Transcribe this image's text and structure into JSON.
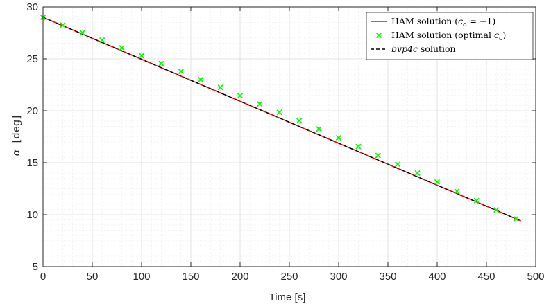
{
  "chart_data": {
    "type": "line",
    "title": "",
    "xlabel": "Time [s]",
    "ylabel_symbol": "α",
    "ylabel_unit": "[deg]",
    "xlim": [
      0,
      500
    ],
    "ylim": [
      5,
      30
    ],
    "xticks": [
      0,
      50,
      100,
      150,
      200,
      250,
      300,
      350,
      400,
      450,
      500
    ],
    "yticks": [
      5,
      10,
      15,
      20,
      25,
      30
    ],
    "grid": true,
    "minor_grid": true,
    "legend_position": "top-right",
    "colors": {
      "ham": "#ff0000",
      "optimal": "#00ff00",
      "bvp4c": "#000000",
      "grid": "#dcdcdc",
      "axis": "#262626"
    },
    "series": [
      {
        "name": "HAM solution (c_o = −1)",
        "legend_parts": [
          "HAM solution (",
          "c",
          "o",
          " = −1)"
        ],
        "style": "solid",
        "x_start": 0,
        "x_end": 485,
        "y_start": 29.0,
        "y_end": 9.4
      },
      {
        "name": "HAM solution (optimal c_o)",
        "legend_parts": [
          "HAM solution (optimal ",
          "c",
          "o",
          ")"
        ],
        "style": "marker-x",
        "x": [
          0,
          20,
          40,
          60,
          80,
          100,
          120,
          140,
          160,
          180,
          200,
          220,
          240,
          260,
          280,
          300,
          320,
          340,
          360,
          380,
          400,
          420,
          440,
          460,
          480
        ],
        "y": [
          29.0,
          28.25,
          27.5,
          26.8,
          26.05,
          25.3,
          24.55,
          23.8,
          23.0,
          22.25,
          21.45,
          20.65,
          19.85,
          19.05,
          18.25,
          17.4,
          16.55,
          15.7,
          14.85,
          14.0,
          13.15,
          12.25,
          11.35,
          10.45,
          9.6
        ]
      },
      {
        "name": "bvp4c solution",
        "legend_parts": [
          "bvp4c",
          " solution"
        ],
        "style": "dashed",
        "x_start": 0,
        "x_end": 485,
        "y_start": 29.0,
        "y_end": 9.4
      }
    ]
  }
}
